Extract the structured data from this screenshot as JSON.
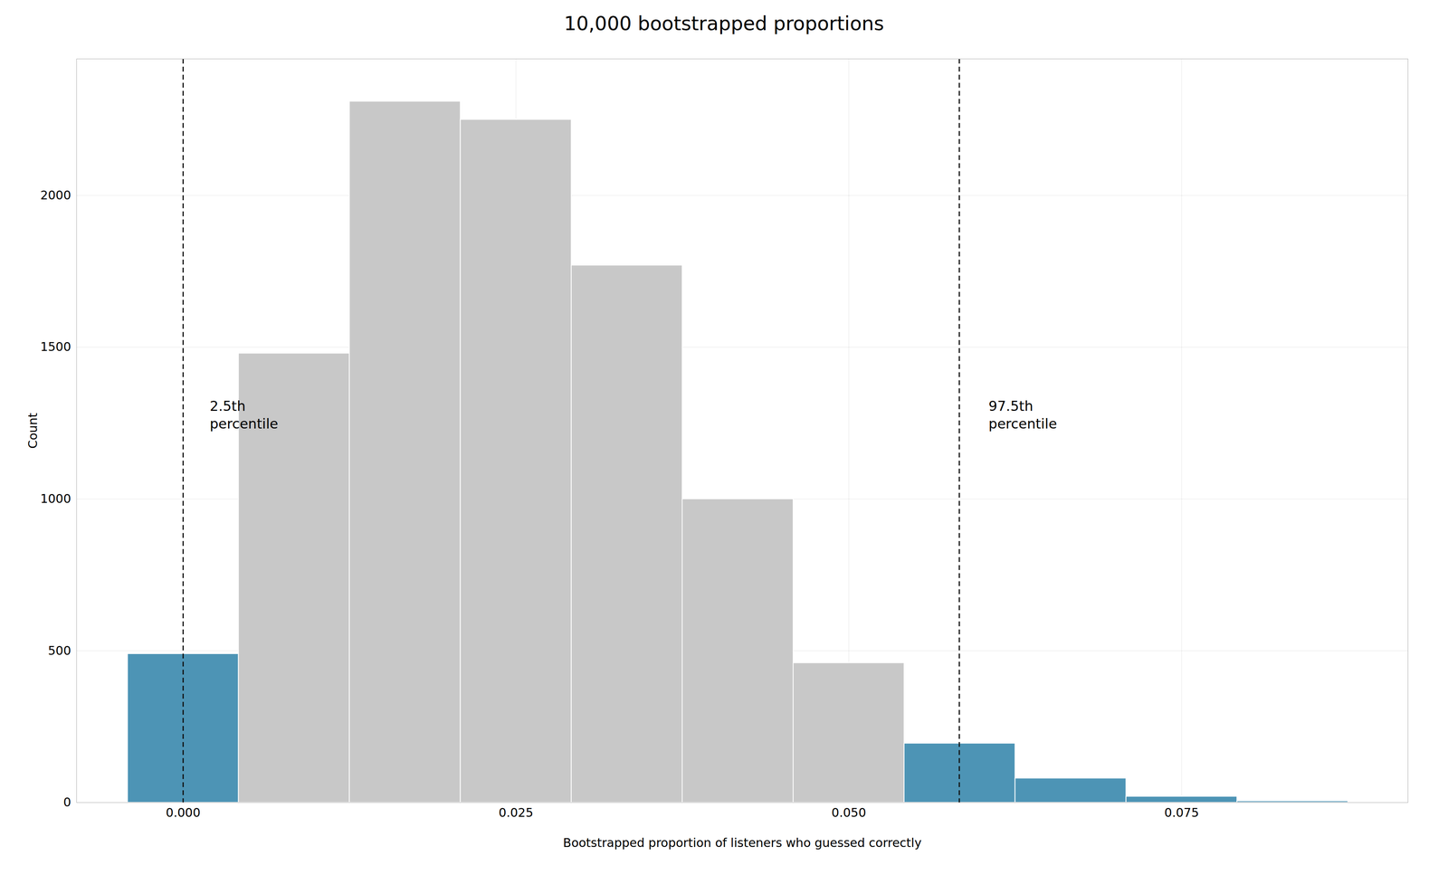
{
  "chart_data": {
    "type": "histogram",
    "title": "10,000 bootstrapped proportions",
    "x_label": "Bootstrapped proportion of listeners who guessed correctly",
    "y_label": "Count",
    "bins": [
      -0.0041665,
      0.0041665,
      0.0125005,
      0.0208335,
      0.0291665,
      0.0374995,
      0.0458335,
      0.0541665,
      0.0624995,
      0.0708335,
      0.0791665,
      0.0874995
    ],
    "values": [
      490,
      1480,
      2310,
      2250,
      1770,
      1000,
      460,
      195,
      80,
      20,
      5
    ],
    "colors": [
      "#4d94b5",
      "#c8c8c8",
      "#c8c8c8",
      "#c8c8c8",
      "#c8c8c8",
      "#c8c8c8",
      "#c8c8c8",
      "#4d94b5",
      "#4d94b5",
      "#4d94b5",
      "#4d94b5"
    ],
    "xlim": [
      -0.008,
      0.092
    ],
    "ylim": [
      0,
      2450
    ],
    "xticks": [
      {
        "value": 0.0,
        "label": "0.000"
      },
      {
        "value": 0.025,
        "label": "0.025"
      },
      {
        "value": 0.05,
        "label": "0.050"
      },
      {
        "value": 0.075,
        "label": "0.075"
      }
    ],
    "yticks": [
      0,
      500,
      1000,
      1500,
      2000
    ],
    "grid": true,
    "vlines": [
      0.0,
      0.0583
    ],
    "annotations": [
      {
        "text": "2.5th\npercentile",
        "x": 0.002,
        "y": 1280
      },
      {
        "text": "97.5th\npercentile",
        "x": 0.0605,
        "y": 1280
      }
    ]
  }
}
